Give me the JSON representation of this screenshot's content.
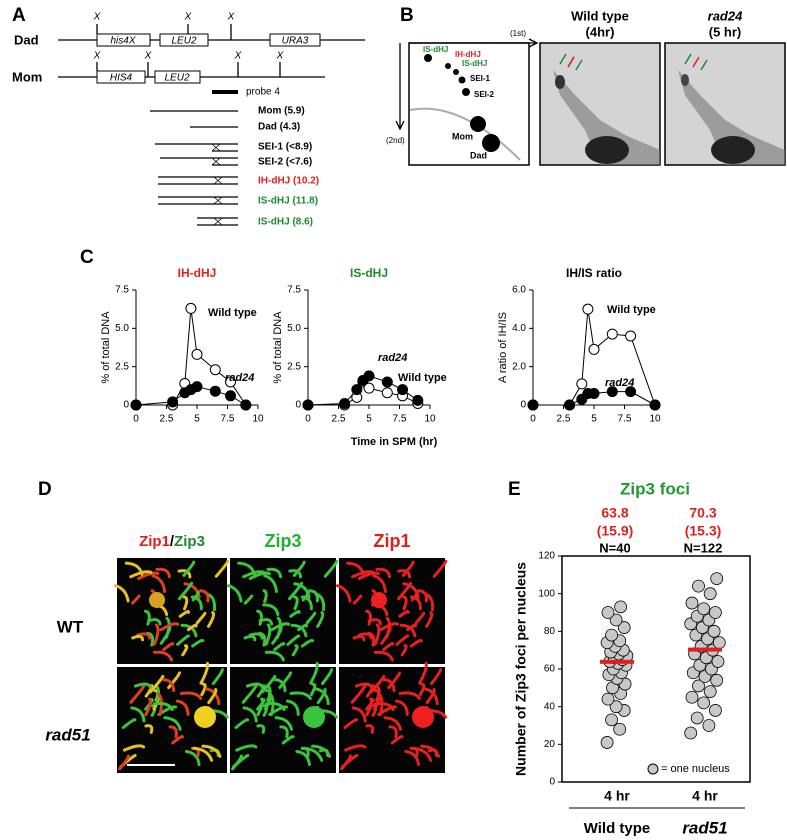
{
  "panel_a": {
    "label": "A",
    "dad": "Dad",
    "mom": "Mom",
    "crossover": "X",
    "dad_genes": [
      "his4X",
      "LEU2",
      "URA3"
    ],
    "mom_genes": [
      "HIS4",
      "LEU2"
    ],
    "probe": "probe 4",
    "fragments": [
      "Mom (5.9)",
      "Dad (4.3)",
      "SEI-1 (<8.9)",
      "SEI-2 (<7.6)",
      "IH-dHJ (10.2)",
      "IS-dHJ (11.8)",
      "IS-dHJ (8.6)"
    ]
  },
  "panel_b": {
    "label": "B",
    "first": "(1st)",
    "second": "(2nd)",
    "spots": [
      "IS-dHJ",
      "IH-dHJ",
      "IS-dHJ",
      "SEI-1",
      "SEI-2",
      "Mom",
      "Dad"
    ],
    "blots": [
      {
        "strain": "Wild type",
        "time": "(4hr)"
      },
      {
        "strain": "rad24",
        "time": "(5 hr)"
      }
    ]
  },
  "panel_c": {
    "label": "C"
  },
  "panel_d": {
    "label": "D",
    "merge_header": [
      "Zip1",
      "/",
      "Zip3"
    ],
    "headers": [
      "Zip3",
      "Zip1"
    ],
    "rows": [
      "WT",
      "rad51"
    ]
  },
  "panel_e": {
    "label": "E"
  },
  "chart_data": [
    {
      "type": "line",
      "title": "IH-dHJ",
      "title_color": "#e0201e",
      "ylabel": "% of total DNA",
      "x": [
        0,
        3,
        4,
        4.5,
        5,
        6.5,
        7.75,
        9
      ],
      "series": [
        {
          "name": "Wild type",
          "color": "#000000",
          "marker_fill": "#ffffff",
          "values": [
            0,
            0,
            1.4,
            6.3,
            3.3,
            2.3,
            1.5,
            0
          ]
        },
        {
          "name": "rad24",
          "color": "#000000",
          "marker_fill": "#000000",
          "values": [
            0,
            0.2,
            0.8,
            1.0,
            1.2,
            0.9,
            0.6,
            0
          ]
        }
      ],
      "xlim": [
        0,
        10
      ],
      "ylim": [
        0,
        7.5
      ],
      "xticks": [
        0,
        2.5,
        5,
        7.5,
        10
      ],
      "yticks": [
        0,
        2.5,
        {
          "value": 5,
          "label": "5.0"
        },
        7.5
      ]
    },
    {
      "type": "line",
      "title": "IS-dHJ",
      "title_color": "#1e8a2e",
      "ylabel": "% of total DNA",
      "xlabel": "Time in SPM (hr)",
      "x": [
        0,
        3,
        4,
        4.5,
        5,
        6.5,
        7.75,
        9
      ],
      "series": [
        {
          "name": "Wild type",
          "color": "#000000",
          "marker_fill": "#ffffff",
          "values": [
            0,
            0,
            0.5,
            1.5,
            1.1,
            0.8,
            0.6,
            0.1
          ]
        },
        {
          "name": "rad24",
          "color": "#000000",
          "marker_fill": "#000000",
          "values": [
            0,
            0.1,
            1.0,
            1.6,
            1.9,
            1.5,
            1.0,
            0.3
          ]
        }
      ],
      "xlim": [
        0,
        10
      ],
      "ylim": [
        0,
        7.5
      ],
      "xticks": [
        0,
        2.5,
        5,
        7.5,
        10
      ],
      "yticks": [
        0,
        2.5,
        {
          "value": 5,
          "label": "5.0"
        },
        7.5
      ]
    },
    {
      "type": "line",
      "title": "IH/IS ratio",
      "title_color": "#000000",
      "ylabel": "A ratio of IH/IS",
      "x": [
        0,
        3,
        4,
        4.5,
        5,
        6.5,
        8,
        10
      ],
      "series": [
        {
          "name": "Wild type",
          "color": "#000000",
          "marker_fill": "#ffffff",
          "values": [
            0,
            0,
            1.1,
            5.0,
            2.9,
            3.7,
            3.6,
            0
          ]
        },
        {
          "name": "rad24",
          "color": "#000000",
          "marker_fill": "#000000",
          "values": [
            0,
            0,
            0.3,
            0.6,
            0.6,
            0.7,
            0.7,
            0
          ]
        }
      ],
      "xlim": [
        0,
        10
      ],
      "ylim": [
        0,
        6
      ],
      "xticks": [
        0,
        2.5,
        5,
        7.5,
        10
      ],
      "yticks": [
        0,
        {
          "value": 2,
          "label": "2.0"
        },
        {
          "value": 4,
          "label": "4.0"
        },
        {
          "value": 6,
          "label": "6.0"
        }
      ]
    },
    {
      "type": "strip",
      "title": "Zip3 foci",
      "title_color": "#1e9a2e",
      "ylabel": "Number of Zip3 foci per nucleus",
      "categories": [
        "Wild type",
        "rad51"
      ],
      "category_sublabels": [
        "4 hr",
        "4 hr"
      ],
      "values": [
        [
          21,
          28,
          33,
          38,
          40,
          44,
          47,
          50,
          52,
          55,
          57,
          58,
          60,
          62,
          63,
          64,
          65,
          66,
          67,
          68,
          69,
          70,
          72,
          74,
          75,
          78,
          82,
          86,
          90,
          93
        ],
        [
          26,
          30,
          34,
          38,
          42,
          45,
          48,
          51,
          54,
          56,
          58,
          60,
          62,
          64,
          66,
          68,
          70,
          72,
          74,
          76,
          78,
          80,
          82,
          84,
          86,
          88,
          90,
          92,
          95,
          100,
          104,
          108
        ]
      ],
      "means": [
        63.8,
        70.3
      ],
      "sd_labels": [
        "(15.9)",
        "(15.3)"
      ],
      "n_labels": [
        "N=40",
        "N=122"
      ],
      "mean_color": "#e0201e",
      "point_color": "#c8c8c8",
      "legend": "= one nucleus",
      "ylim": [
        0,
        120
      ],
      "yticks": [
        0,
        20,
        40,
        60,
        80,
        100,
        120
      ]
    }
  ]
}
